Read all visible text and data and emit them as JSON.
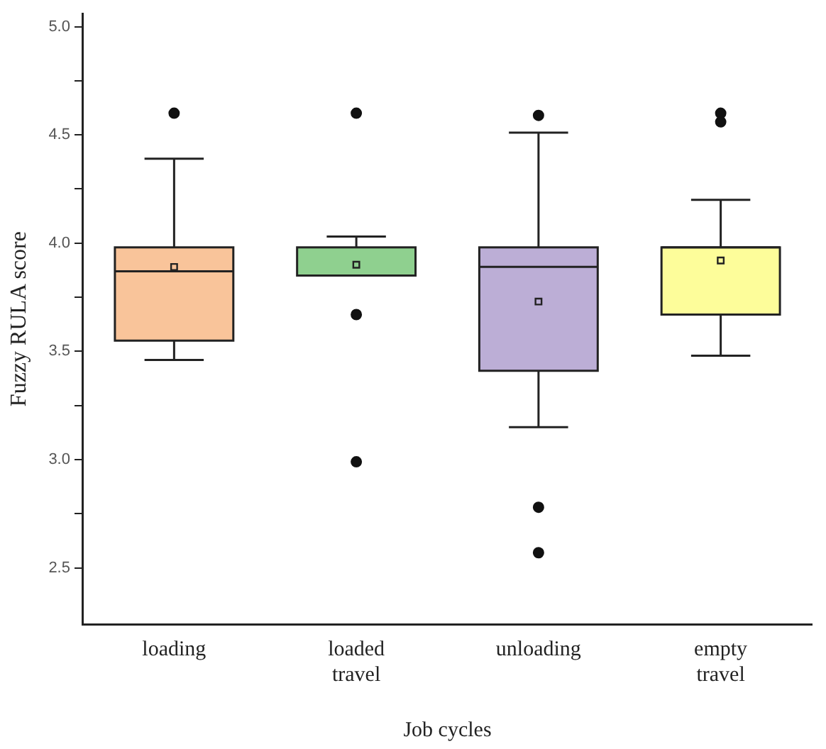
{
  "chart_data": {
    "type": "box",
    "xlabel": "Job cycles",
    "ylabel": "Fuzzy RULA score",
    "categories": [
      "loading",
      "loaded travel",
      "unloading",
      "empty travel"
    ],
    "colors": [
      "#f9c49a",
      "#8fd08f",
      "#bcaed6",
      "#fdfd9a"
    ],
    "boxes": [
      {
        "low": 3.46,
        "q1": 3.55,
        "median": 3.87,
        "q3": 3.98,
        "high": 4.39,
        "mean": 3.89,
        "outliers": [
          4.6
        ]
      },
      {
        "low": 3.85,
        "q1": 3.85,
        "median": 3.85,
        "q3": 3.98,
        "high": 4.03,
        "mean": 3.9,
        "outliers": [
          4.6,
          3.67,
          2.99
        ]
      },
      {
        "low": 3.15,
        "q1": 3.41,
        "median": 3.89,
        "q3": 3.98,
        "high": 4.51,
        "mean": 3.73,
        "outliers": [
          4.59,
          2.78,
          2.57
        ]
      },
      {
        "low": 3.48,
        "q1": 3.67,
        "median": 3.98,
        "q3": 3.98,
        "high": 4.2,
        "mean": 3.92,
        "outliers": [
          4.6,
          4.56
        ]
      }
    ],
    "ylim": [
      2.24,
      5.06
    ],
    "yticks": [
      2.5,
      {
        "value": 2.75,
        "label": null
      },
      {
        "value": 3,
        "label": "3.0"
      },
      {
        "value": 3.25,
        "label": null
      },
      3.5,
      {
        "value": 3.75,
        "label": null
      },
      {
        "value": 4,
        "label": "4.0"
      },
      {
        "value": 4.25,
        "label": null
      },
      4.5,
      {
        "value": 4.75,
        "label": null
      },
      {
        "value": 5,
        "label": "5.0"
      }
    ],
    "grid": false,
    "legend": false
  }
}
